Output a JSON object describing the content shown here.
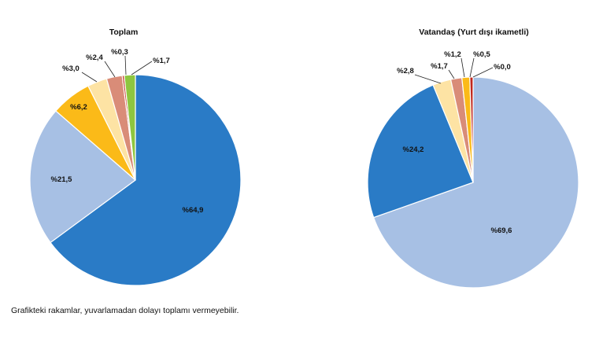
{
  "footnote": "Grafikteki rakamlar, yuvarlamadan dolayı toplamı vermeyebilir.",
  "chart_data": [
    {
      "type": "pie",
      "title": "Toplam",
      "slices": [
        {
          "label": "%64,9",
          "value": 64.9,
          "color": "#2a7bc6"
        },
        {
          "label": "%21,5",
          "value": 21.5,
          "color": "#a7c0e4"
        },
        {
          "label": "%6,2",
          "value": 6.2,
          "color": "#fbba18"
        },
        {
          "label": "%3,0",
          "value": 3.0,
          "color": "#fde3a4"
        },
        {
          "label": "%2,4",
          "value": 2.4,
          "color": "#d98c78"
        },
        {
          "label": "%0,3",
          "value": 0.3,
          "color": "#c0271c"
        },
        {
          "label": "%1,7",
          "value": 1.7,
          "color": "#8ec63f"
        }
      ]
    },
    {
      "type": "pie",
      "title": "Vatandaş (Yurt dışı ikametli)",
      "slices": [
        {
          "label": "%69,6",
          "value": 69.6,
          "color": "#a7c0e4"
        },
        {
          "label": "%24,2",
          "value": 24.2,
          "color": "#2a7bc6"
        },
        {
          "label": "%2,8",
          "value": 2.8,
          "color": "#fde3a4"
        },
        {
          "label": "%1,7",
          "value": 1.7,
          "color": "#d98c78"
        },
        {
          "label": "%1,2",
          "value": 1.2,
          "color": "#fbba18"
        },
        {
          "label": "%0,5",
          "value": 0.5,
          "color": "#c0271c"
        },
        {
          "label": "%0,0",
          "value": 0.0,
          "color": "#8ec63f"
        }
      ]
    }
  ]
}
